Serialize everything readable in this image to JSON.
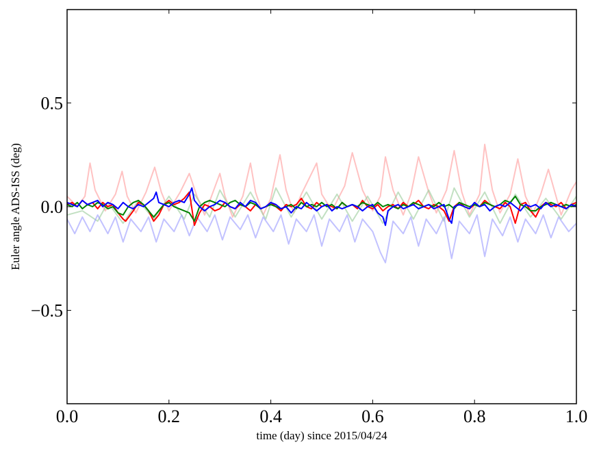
{
  "chart_data": {
    "type": "line",
    "title": "",
    "xlabel": "time (day) since 2015/04/24",
    "ylabel": "Euler angle ADS-ISS (deg)",
    "xlim": [
      0.0,
      1.0
    ],
    "ylim": [
      -0.95,
      0.95
    ],
    "xticks": [
      0.0,
      0.2,
      0.4,
      0.6,
      0.8,
      1.0
    ],
    "xtick_labels": [
      "0.0",
      "0.2",
      "0.4",
      "0.6",
      "0.8",
      "1.0"
    ],
    "yticks": [
      -0.5,
      0.0,
      0.5
    ],
    "ytick_labels": [
      "−0.5",
      "0.0",
      "0.5"
    ],
    "grid": false,
    "legend": null,
    "series": [
      {
        "color": "#ff9999",
        "opacity": 0.6,
        "x": [
          0.0,
          0.02,
          0.035,
          0.045,
          0.055,
          0.075,
          0.095,
          0.108,
          0.118,
          0.135,
          0.155,
          0.172,
          0.185,
          0.2,
          0.222,
          0.24,
          0.255,
          0.27,
          0.285,
          0.3,
          0.31,
          0.325,
          0.345,
          0.36,
          0.37,
          0.385,
          0.4,
          0.418,
          0.43,
          0.445,
          0.46,
          0.49,
          0.5,
          0.52,
          0.545,
          0.56,
          0.58,
          0.6,
          0.615,
          0.625,
          0.64,
          0.66,
          0.675,
          0.69,
          0.71,
          0.725,
          0.745,
          0.76,
          0.775,
          0.79,
          0.81,
          0.82,
          0.835,
          0.85,
          0.87,
          0.885,
          0.9,
          0.915,
          0.93,
          0.945,
          0.96,
          0.97,
          0.99,
          1.0
        ],
        "y": [
          0.05,
          0.0,
          0.05,
          0.21,
          0.08,
          -0.02,
          0.06,
          0.17,
          0.05,
          -0.03,
          0.07,
          0.19,
          0.07,
          -0.02,
          0.07,
          0.16,
          0.05,
          -0.04,
          0.06,
          0.16,
          0.05,
          -0.05,
          0.05,
          0.21,
          0.07,
          -0.04,
          0.04,
          0.25,
          0.08,
          -0.03,
          0.06,
          0.21,
          0.06,
          -0.02,
          0.1,
          0.26,
          0.08,
          -0.02,
          0.05,
          0.24,
          0.08,
          -0.04,
          0.06,
          0.24,
          0.07,
          -0.03,
          0.08,
          0.27,
          0.07,
          -0.04,
          0.06,
          0.3,
          0.08,
          -0.03,
          0.06,
          0.23,
          0.05,
          -0.03,
          0.06,
          0.18,
          0.05,
          -0.04,
          0.08,
          0.12
        ]
      },
      {
        "color": "#99cc99",
        "opacity": 0.6,
        "x": [
          0.0,
          0.03,
          0.06,
          0.08,
          0.11,
          0.14,
          0.17,
          0.2,
          0.23,
          0.25,
          0.28,
          0.3,
          0.33,
          0.36,
          0.39,
          0.41,
          0.44,
          0.47,
          0.5,
          0.53,
          0.56,
          0.59,
          0.62,
          0.65,
          0.68,
          0.71,
          0.74,
          0.76,
          0.79,
          0.82,
          0.85,
          0.88,
          0.91,
          0.94,
          0.97,
          1.0
        ],
        "y": [
          -0.04,
          -0.02,
          -0.07,
          0.02,
          -0.08,
          0.03,
          -0.06,
          0.05,
          -0.06,
          0.06,
          -0.05,
          0.08,
          -0.05,
          0.07,
          -0.06,
          0.09,
          -0.05,
          0.07,
          -0.06,
          0.06,
          -0.07,
          0.05,
          -0.08,
          0.07,
          -0.06,
          0.08,
          -0.07,
          0.09,
          -0.05,
          0.07,
          -0.08,
          0.06,
          -0.05,
          0.04,
          -0.06,
          0.05
        ]
      },
      {
        "color": "#9999ff",
        "opacity": 0.6,
        "x": [
          0.0,
          0.015,
          0.03,
          0.045,
          0.06,
          0.08,
          0.095,
          0.11,
          0.125,
          0.145,
          0.16,
          0.175,
          0.19,
          0.21,
          0.225,
          0.24,
          0.255,
          0.275,
          0.29,
          0.305,
          0.32,
          0.34,
          0.355,
          0.37,
          0.385,
          0.405,
          0.42,
          0.435,
          0.45,
          0.47,
          0.485,
          0.5,
          0.515,
          0.535,
          0.55,
          0.565,
          0.58,
          0.6,
          0.615,
          0.625,
          0.64,
          0.66,
          0.675,
          0.69,
          0.705,
          0.725,
          0.74,
          0.755,
          0.77,
          0.79,
          0.805,
          0.82,
          0.835,
          0.855,
          0.87,
          0.885,
          0.9,
          0.92,
          0.935,
          0.95,
          0.965,
          0.985,
          1.0
        ],
        "y": [
          -0.06,
          -0.13,
          -0.05,
          -0.12,
          -0.04,
          -0.13,
          -0.05,
          -0.17,
          -0.06,
          -0.12,
          -0.05,
          -0.17,
          -0.06,
          -0.12,
          -0.04,
          -0.14,
          -0.05,
          -0.12,
          -0.04,
          -0.16,
          -0.05,
          -0.11,
          -0.04,
          -0.15,
          -0.05,
          -0.12,
          -0.04,
          -0.18,
          -0.06,
          -0.12,
          -0.04,
          -0.19,
          -0.06,
          -0.12,
          -0.04,
          -0.17,
          -0.06,
          -0.12,
          -0.22,
          -0.27,
          -0.07,
          -0.13,
          -0.05,
          -0.19,
          -0.06,
          -0.13,
          -0.05,
          -0.25,
          -0.07,
          -0.13,
          -0.04,
          -0.24,
          -0.06,
          -0.14,
          -0.05,
          -0.17,
          -0.06,
          -0.13,
          -0.04,
          -0.15,
          -0.05,
          -0.12,
          -0.08
        ]
      },
      {
        "color": "#ff0000",
        "opacity": 1.0,
        "x": [
          0.0,
          0.01,
          0.02,
          0.03,
          0.04,
          0.05,
          0.06,
          0.07,
          0.08,
          0.09,
          0.1,
          0.11,
          0.115,
          0.13,
          0.14,
          0.15,
          0.16,
          0.17,
          0.18,
          0.19,
          0.2,
          0.21,
          0.22,
          0.23,
          0.24,
          0.25,
          0.26,
          0.27,
          0.28,
          0.29,
          0.3,
          0.31,
          0.32,
          0.33,
          0.34,
          0.35,
          0.36,
          0.37,
          0.38,
          0.39,
          0.4,
          0.41,
          0.42,
          0.43,
          0.44,
          0.45,
          0.46,
          0.47,
          0.48,
          0.49,
          0.5,
          0.51,
          0.52,
          0.53,
          0.54,
          0.55,
          0.56,
          0.57,
          0.58,
          0.59,
          0.6,
          0.61,
          0.62,
          0.63,
          0.64,
          0.65,
          0.66,
          0.67,
          0.68,
          0.69,
          0.7,
          0.71,
          0.72,
          0.73,
          0.74,
          0.75,
          0.76,
          0.77,
          0.78,
          0.79,
          0.8,
          0.81,
          0.82,
          0.83,
          0.84,
          0.85,
          0.86,
          0.87,
          0.88,
          0.89,
          0.9,
          0.91,
          0.92,
          0.93,
          0.94,
          0.95,
          0.96,
          0.97,
          0.98,
          0.99,
          1.0
        ],
        "y": [
          0.01,
          0.02,
          0.0,
          0.03,
          0.01,
          0.02,
          -0.01,
          0.02,
          0.0,
          0.01,
          -0.03,
          -0.06,
          -0.07,
          -0.02,
          0.02,
          0.01,
          -0.02,
          -0.07,
          -0.04,
          0.01,
          0.03,
          0.01,
          0.02,
          0.04,
          0.07,
          -0.09,
          -0.03,
          0.01,
          0.0,
          -0.02,
          -0.01,
          0.02,
          0.0,
          -0.01,
          0.01,
          0.0,
          -0.02,
          0.01,
          -0.01,
          0.0,
          0.02,
          0.0,
          -0.02,
          0.01,
          0.0,
          0.01,
          0.04,
          0.0,
          -0.01,
          0.02,
          0.0,
          0.01,
          0.0,
          -0.01,
          0.02,
          0.0,
          0.01,
          -0.01,
          0.03,
          0.0,
          -0.01,
          0.01,
          -0.02,
          0.0,
          0.01,
          -0.01,
          0.02,
          0.0,
          0.01,
          0.03,
          0.0,
          -0.01,
          0.01,
          0.0,
          -0.02,
          -0.07,
          0.0,
          0.02,
          0.0,
          -0.01,
          0.01,
          0.0,
          0.03,
          0.01,
          0.0,
          -0.01,
          0.02,
          0.0,
          -0.08,
          0.01,
          0.02,
          -0.02,
          -0.05,
          0.0,
          0.02,
          0.01,
          0.0,
          0.02,
          -0.01,
          0.01,
          0.02
        ]
      },
      {
        "color": "#008000",
        "opacity": 1.0,
        "x": [
          0.0,
          0.01,
          0.02,
          0.03,
          0.04,
          0.05,
          0.06,
          0.07,
          0.08,
          0.09,
          0.1,
          0.11,
          0.12,
          0.13,
          0.14,
          0.15,
          0.16,
          0.17,
          0.18,
          0.19,
          0.2,
          0.21,
          0.22,
          0.23,
          0.24,
          0.25,
          0.26,
          0.27,
          0.28,
          0.29,
          0.3,
          0.31,
          0.32,
          0.33,
          0.34,
          0.35,
          0.36,
          0.37,
          0.38,
          0.39,
          0.4,
          0.41,
          0.42,
          0.43,
          0.44,
          0.45,
          0.46,
          0.47,
          0.48,
          0.49,
          0.5,
          0.51,
          0.52,
          0.53,
          0.54,
          0.55,
          0.56,
          0.57,
          0.58,
          0.59,
          0.6,
          0.61,
          0.62,
          0.63,
          0.64,
          0.65,
          0.66,
          0.67,
          0.68,
          0.69,
          0.7,
          0.71,
          0.72,
          0.73,
          0.74,
          0.75,
          0.76,
          0.77,
          0.78,
          0.79,
          0.8,
          0.81,
          0.82,
          0.83,
          0.84,
          0.85,
          0.86,
          0.87,
          0.88,
          0.89,
          0.9,
          0.91,
          0.92,
          0.93,
          0.94,
          0.95,
          0.96,
          0.97,
          0.98,
          0.99,
          1.0
        ],
        "y": [
          0.01,
          0.0,
          0.02,
          -0.01,
          0.01,
          0.0,
          0.02,
          0.01,
          -0.01,
          0.0,
          -0.03,
          -0.04,
          0.0,
          0.02,
          0.03,
          0.01,
          -0.02,
          -0.05,
          -0.02,
          0.01,
          0.02,
          0.0,
          -0.01,
          -0.02,
          -0.03,
          -0.07,
          0.0,
          0.02,
          0.03,
          0.02,
          0.01,
          0.0,
          0.02,
          0.03,
          0.01,
          0.0,
          0.02,
          0.01,
          -0.01,
          0.0,
          0.01,
          0.0,
          -0.01,
          0.0,
          0.01,
          -0.01,
          0.02,
          0.0,
          0.01,
          0.0,
          0.02,
          0.0,
          0.01,
          -0.01,
          0.02,
          0.0,
          0.01,
          0.0,
          0.02,
          0.01,
          0.0,
          0.02,
          0.0,
          0.01,
          0.0,
          -0.01,
          0.01,
          0.0,
          0.02,
          0.01,
          0.0,
          0.01,
          0.0,
          0.02,
          0.0,
          0.01,
          -0.01,
          0.02,
          0.01,
          0.0,
          0.01,
          0.0,
          0.02,
          0.01,
          0.0,
          0.01,
          0.03,
          0.02,
          0.05,
          0.01,
          0.0,
          -0.02,
          -0.02,
          0.0,
          0.01,
          0.02,
          0.01,
          0.0,
          0.01,
          0.0,
          0.01
        ]
      },
      {
        "color": "#0000ff",
        "opacity": 1.0,
        "x": [
          0.0,
          0.01,
          0.02,
          0.03,
          0.04,
          0.05,
          0.06,
          0.07,
          0.08,
          0.09,
          0.1,
          0.11,
          0.12,
          0.13,
          0.14,
          0.15,
          0.16,
          0.17,
          0.175,
          0.18,
          0.19,
          0.2,
          0.21,
          0.22,
          0.23,
          0.24,
          0.245,
          0.25,
          0.26,
          0.27,
          0.28,
          0.29,
          0.3,
          0.31,
          0.32,
          0.33,
          0.34,
          0.35,
          0.36,
          0.37,
          0.38,
          0.39,
          0.4,
          0.41,
          0.42,
          0.43,
          0.44,
          0.45,
          0.46,
          0.47,
          0.48,
          0.49,
          0.5,
          0.51,
          0.52,
          0.53,
          0.54,
          0.55,
          0.56,
          0.57,
          0.58,
          0.59,
          0.6,
          0.61,
          0.62,
          0.625,
          0.63,
          0.64,
          0.65,
          0.66,
          0.67,
          0.68,
          0.69,
          0.7,
          0.71,
          0.72,
          0.73,
          0.74,
          0.75,
          0.755,
          0.76,
          0.77,
          0.78,
          0.79,
          0.8,
          0.81,
          0.82,
          0.83,
          0.84,
          0.85,
          0.86,
          0.87,
          0.88,
          0.89,
          0.9,
          0.91,
          0.92,
          0.93,
          0.94,
          0.95,
          0.96,
          0.97,
          0.98,
          0.99,
          1.0
        ],
        "y": [
          0.02,
          0.01,
          0.0,
          0.03,
          0.01,
          0.02,
          0.03,
          0.0,
          0.02,
          0.01,
          -0.01,
          0.02,
          0.0,
          -0.01,
          0.01,
          0.0,
          0.02,
          0.04,
          0.07,
          0.02,
          0.01,
          0.0,
          0.02,
          0.03,
          0.02,
          0.06,
          0.09,
          0.03,
          0.0,
          -0.02,
          0.0,
          0.01,
          0.03,
          0.02,
          0.0,
          -0.01,
          0.02,
          0.0,
          0.03,
          0.02,
          -0.01,
          0.0,
          0.02,
          0.01,
          -0.01,
          0.0,
          -0.03,
          0.0,
          -0.01,
          0.02,
          0.0,
          -0.02,
          0.0,
          0.01,
          -0.02,
          0.0,
          -0.01,
          0.0,
          0.01,
          0.0,
          -0.02,
          0.0,
          0.01,
          -0.03,
          -0.05,
          -0.09,
          -0.02,
          0.0,
          0.01,
          -0.01,
          0.0,
          0.01,
          -0.01,
          0.0,
          0.01,
          -0.01,
          0.0,
          0.01,
          -0.06,
          -0.08,
          0.0,
          0.01,
          0.0,
          -0.01,
          0.02,
          0.0,
          0.01,
          -0.02,
          0.0,
          0.01,
          0.0,
          0.02,
          0.0,
          -0.02,
          0.01,
          0.0,
          0.01,
          -0.01,
          0.02,
          0.0,
          0.01,
          0.0,
          -0.01,
          0.01,
          0.0
        ]
      }
    ]
  }
}
